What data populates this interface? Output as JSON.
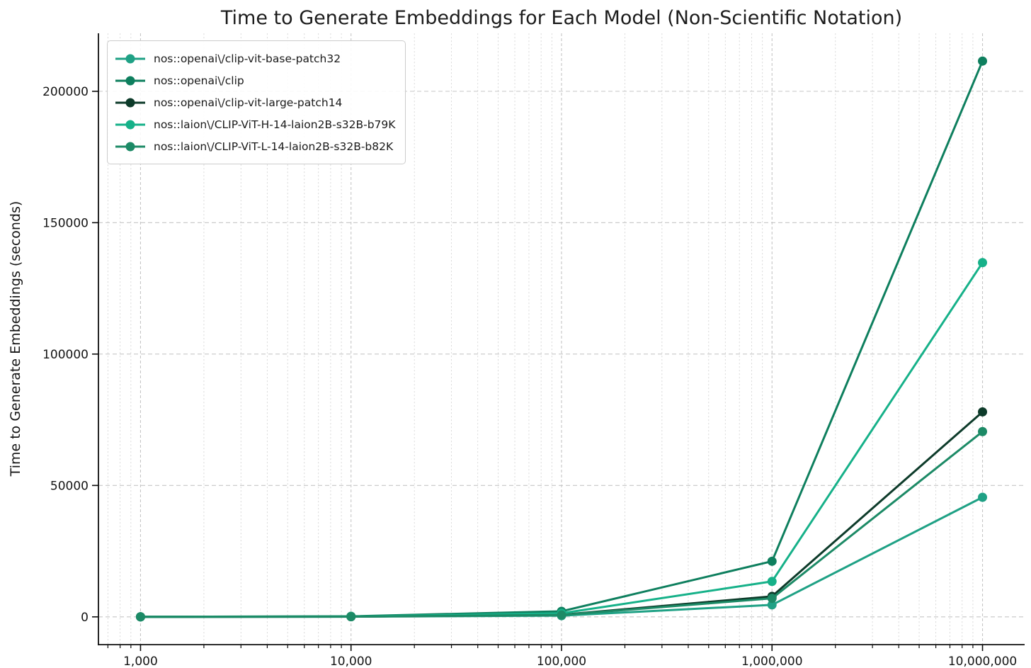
{
  "chart_data": {
    "type": "line",
    "title": "Time to Generate Embeddings for Each Model (Non-Scientific Notation)",
    "xlabel": "",
    "ylabel": "Time to Generate Embeddings (seconds)",
    "x_scale": "log",
    "y_scale": "linear",
    "grid": "major dashed both axes, log minor vertical gridlines",
    "legend_position": "upper left",
    "x": [
      1000,
      10000,
      100000,
      1000000,
      10000000
    ],
    "xtick_labels": [
      "1,000",
      "10,000",
      "100,000",
      "1,000,000",
      "10,000,000"
    ],
    "yticks": [
      0,
      50000,
      100000,
      150000,
      200000
    ],
    "ytick_labels": [
      "0",
      "50000",
      "100000",
      "150000",
      "200000"
    ],
    "xlim": [
      631,
      15850000
    ],
    "ylim": [
      -10570,
      222070
    ],
    "series": [
      {
        "name": "nos::openai\\/clip-vit-base-patch32",
        "color": "#1fa185",
        "values": [
          4.6,
          46,
          455,
          4550,
          45500
        ]
      },
      {
        "name": "nos::openai\\/clip",
        "color": "#0e7f5e",
        "values": [
          21,
          212,
          2115,
          21150,
          211500
        ]
      },
      {
        "name": "nos::openai\\/clip-vit-large-patch14",
        "color": "#0d3b2a",
        "values": [
          7.8,
          78,
          780,
          7800,
          78000
        ]
      },
      {
        "name": "nos::laion\\/CLIP-ViT-H-14-laion2B-s32B-b79K",
        "color": "#16b189",
        "values": [
          13.5,
          135,
          1350,
          13480,
          134800
        ]
      },
      {
        "name": "nos::laion\\/CLIP-ViT-L-14-laion2B-s32B-b82K",
        "color": "#1c8a66",
        "values": [
          7.1,
          71,
          705,
          7050,
          70500
        ]
      }
    ]
  }
}
